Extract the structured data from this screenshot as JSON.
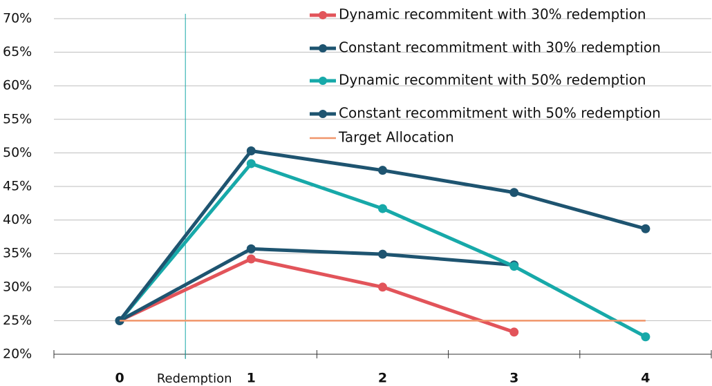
{
  "chart_data": {
    "type": "line",
    "x": [
      0,
      1,
      2,
      3,
      4
    ],
    "series": [
      {
        "name": "Dynamic recommitent with 30% redemption",
        "color": "#e2545a",
        "marker": true,
        "values": [
          25,
          34.2,
          30.0,
          23.3,
          null
        ]
      },
      {
        "name": "Constant recommitment with 30% redemption",
        "color": "#1e5470",
        "marker": true,
        "values": [
          25,
          35.7,
          34.9,
          33.3,
          null
        ]
      },
      {
        "name": "Dynamic recommitent with 50% redemption",
        "color": "#17a9a9",
        "marker": true,
        "values": [
          25,
          48.4,
          41.7,
          33.1,
          22.6
        ]
      },
      {
        "name": "Constant recommitment with 50% redemption",
        "color": "#1e5470",
        "marker": true,
        "values": [
          25,
          50.3,
          47.4,
          44.1,
          38.7
        ]
      },
      {
        "name": "Target Allocation",
        "color": "#f0956a",
        "marker": false,
        "values": [
          25,
          25,
          25,
          25,
          25
        ]
      }
    ],
    "xlim": [
      -0.5,
      4.5
    ],
    "xticks": [
      0,
      1,
      2,
      3,
      4
    ],
    "xminorticks": [
      -0.5,
      0.5,
      1.5,
      2.5,
      3.5,
      4.5
    ],
    "ylim": [
      20,
      70
    ],
    "yticks": [
      {
        "value": 20,
        "label": "20%"
      },
      {
        "value": 25,
        "label": "25%"
      },
      {
        "value": 30,
        "label": "30%"
      },
      {
        "value": 35,
        "label": "35%"
      },
      {
        "value": 40,
        "label": "40%"
      },
      {
        "value": 45,
        "label": "45%"
      },
      {
        "value": 50,
        "label": "50%"
      },
      {
        "value": 55,
        "label": "55%"
      },
      {
        "value": 60,
        "label": "60%"
      },
      {
        "value": 65,
        "label": "65%"
      },
      {
        "value": 70,
        "label": "70%"
      }
    ],
    "grid": true,
    "legend": "top-right",
    "annotation": {
      "text": "Redemption",
      "x": 0.5,
      "color": "#17a9a9"
    }
  }
}
